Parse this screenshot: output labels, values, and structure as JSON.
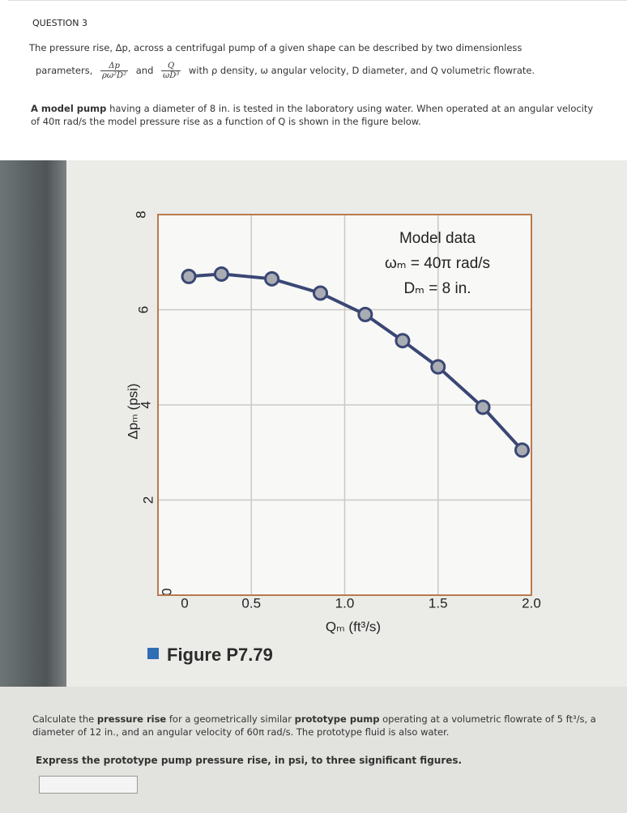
{
  "question": {
    "heading": "QUESTION 3",
    "intro": "The pressure rise, Δp, across a centrifugal pump of a given shape can be described by two dimensionless",
    "params_label": "parameters,",
    "param1": {
      "numerator": "Δp",
      "denominator": "ρω²D²"
    },
    "joiner": "and",
    "param2": {
      "numerator": "Q",
      "denominator": "ωD³"
    },
    "definitions": "with ρ density, ω angular velocity, D diameter, and Q volumetric flowrate.",
    "model_bold": "A model pump",
    "model_text": "having a diameter of 8 in. is tested in the laboratory using water. When operated at an angular velocity of 40π rad/s the model pressure rise as a function of Q is shown in the figure below."
  },
  "chart_data": {
    "type": "line",
    "caption": "Figure P7.79",
    "x_label": "Qₘ (ft³/s)",
    "y_label": "Δpₘ (psi)",
    "annotations": [
      "Model data",
      "ωₘ = 40π rad/s",
      "Dₘ = 8 in."
    ],
    "x": [
      0.165,
      0.34,
      0.61,
      0.87,
      1.11,
      1.31,
      1.5,
      1.74,
      1.95
    ],
    "series": [
      {
        "color": "#3a4775",
        "values": [
          6.7,
          6.75,
          6.65,
          6.35,
          5.9,
          5.35,
          4.8,
          3.95,
          3.05
        ]
      }
    ],
    "xlim": [
      0,
      2
    ],
    "ylim": [
      0,
      8
    ],
    "xticks": [
      0,
      0.5,
      {
        "value": 1,
        "label": "1.0"
      },
      1.5,
      {
        "value": 2,
        "label": "2.0"
      }
    ],
    "yticks": [
      0,
      2,
      4,
      6,
      8
    ],
    "grid": true
  },
  "task": {
    "segments": [
      {
        "text": "Calculate the",
        "bold": false
      },
      {
        "text": "pressure rise",
        "bold": true
      },
      {
        "text": "for a geometrically similar",
        "bold": false
      },
      {
        "text": "prototype pump",
        "bold": true
      },
      {
        "text": "operating at a volumetric flowrate of 5 ft³/s, a diameter of 12 in., and an angular velocity of 60π rad/s. The prototype fluid is also water.",
        "bold": false
      }
    ],
    "instruction": "Express the prototype pump pressure rise, in psi, to three significant figures."
  }
}
